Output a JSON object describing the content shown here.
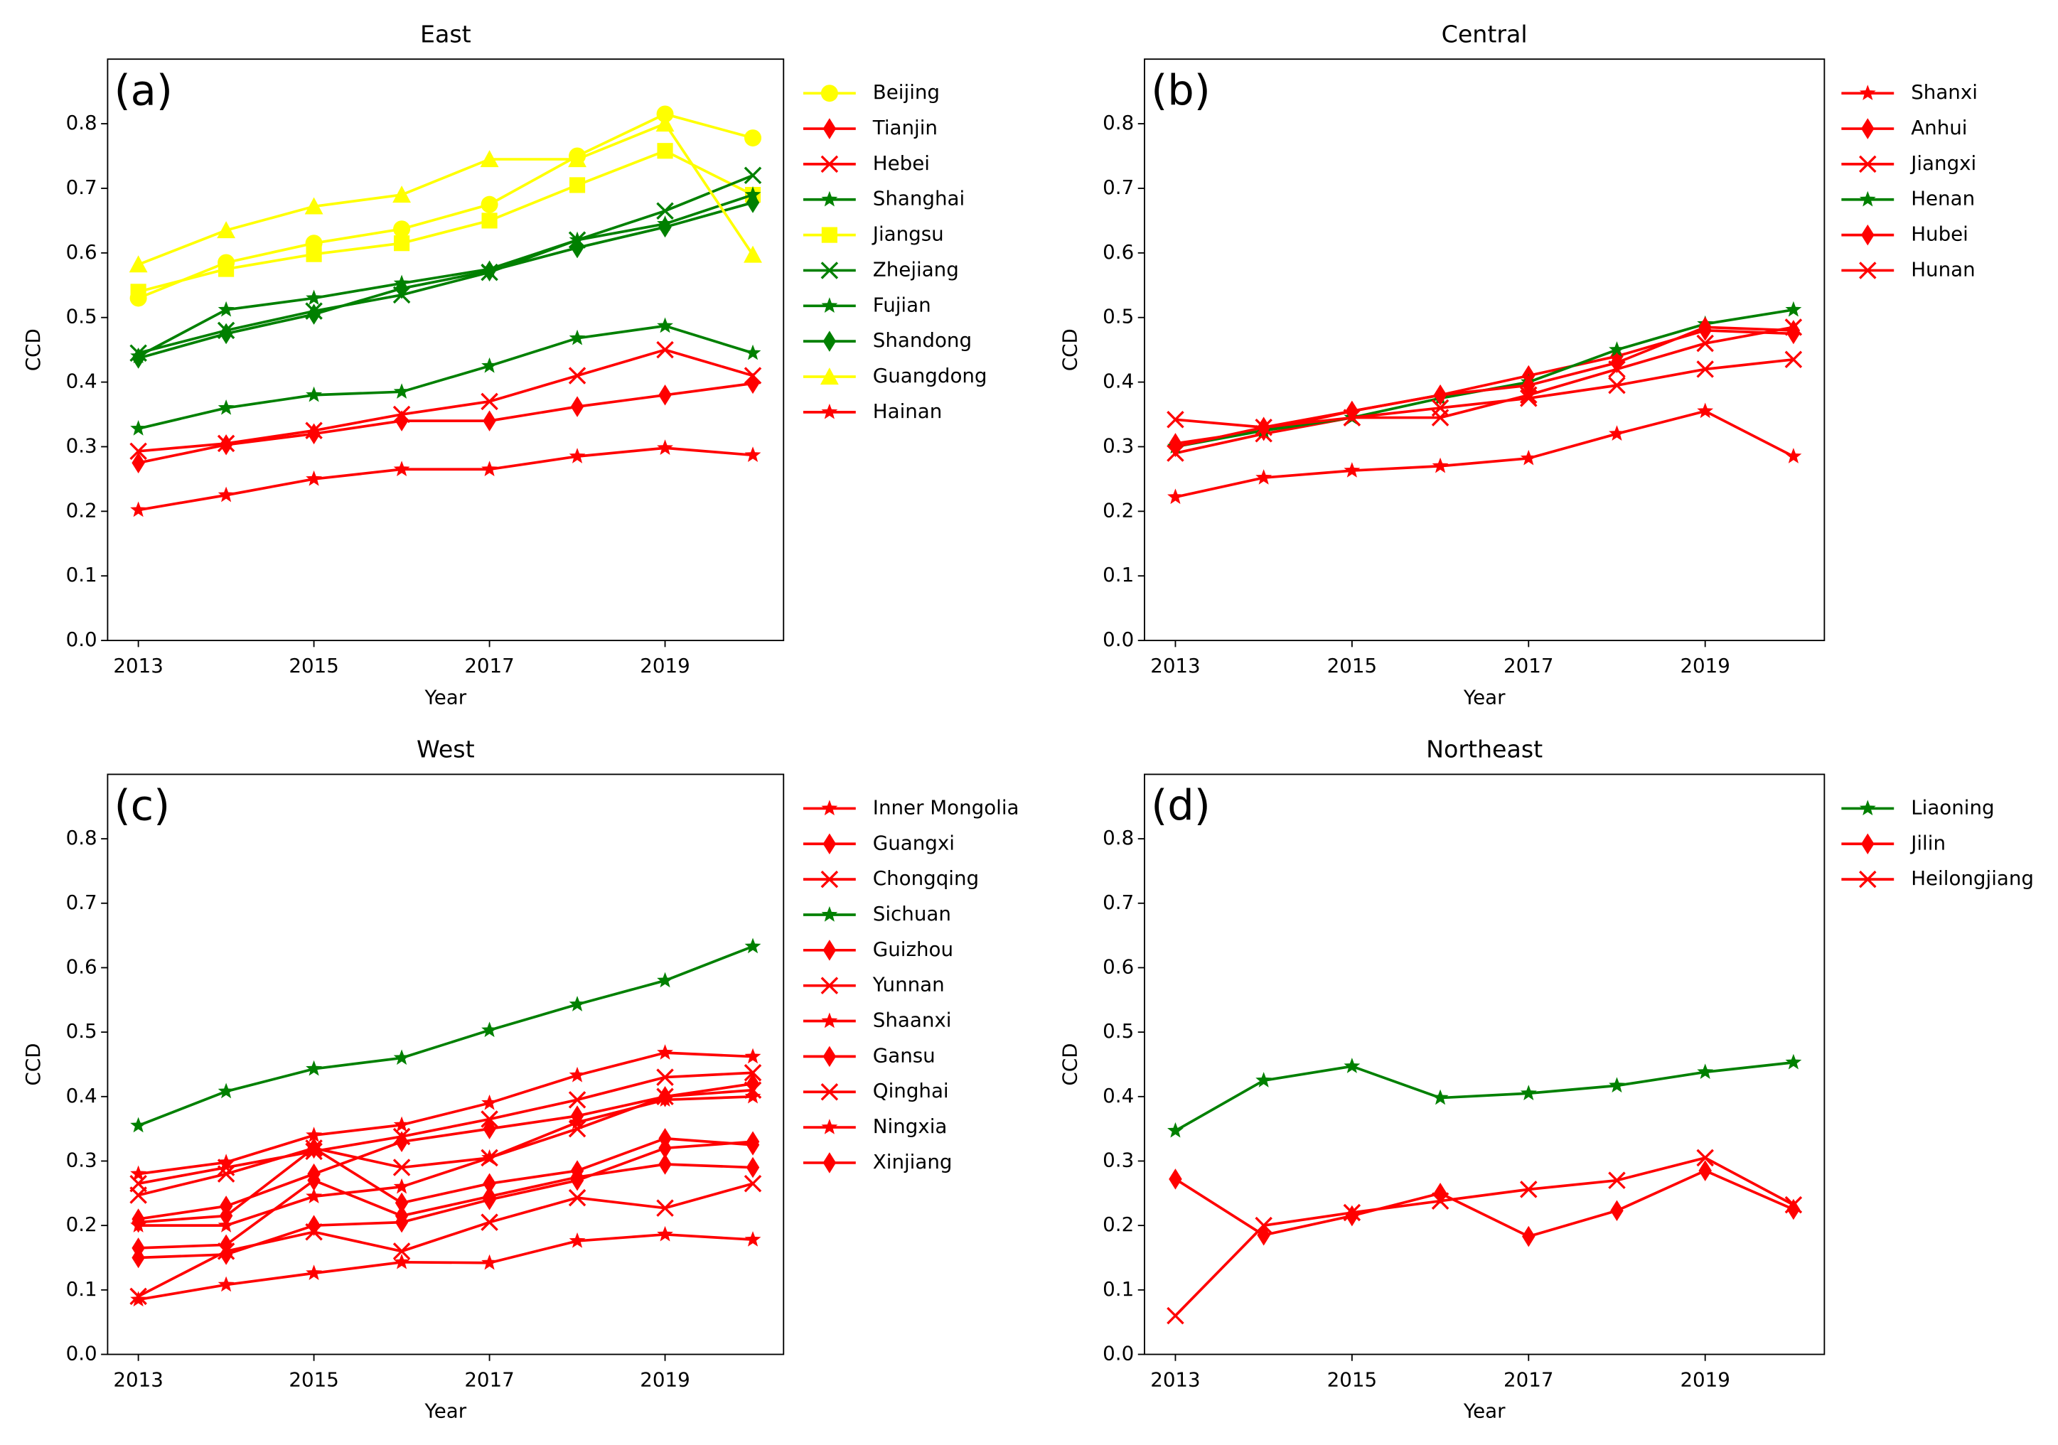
{
  "chart_data": [
    {
      "type": "line",
      "title": "East",
      "panel_label": "(a)",
      "xlabel": "Year",
      "ylabel": "CCD",
      "x": [
        2013,
        2014,
        2015,
        2016,
        2017,
        2018,
        2019,
        2020
      ],
      "xlim": [
        2012.65,
        2020.35
      ],
      "xticks": [
        2013,
        2015,
        2017,
        2019
      ],
      "ylim": [
        0,
        0.9
      ],
      "yticks": [
        {
          "value": 0,
          "label": "0.0"
        },
        0.1,
        0.2,
        0.3,
        0.4,
        0.5,
        0.6,
        0.7,
        0.8
      ],
      "series": [
        {
          "name": "Beijing",
          "color": "#ffff00",
          "marker": "circle",
          "values": [
            0.53,
            0.585,
            0.615,
            0.637,
            0.675,
            0.75,
            0.815,
            0.778
          ]
        },
        {
          "name": "Tianjin",
          "color": "#ff0000",
          "marker": "diamond",
          "values": [
            0.275,
            0.303,
            0.32,
            0.34,
            0.34,
            0.362,
            0.38,
            0.398
          ]
        },
        {
          "name": "Hebei",
          "color": "#ff0000",
          "marker": "x",
          "values": [
            0.293,
            0.305,
            0.325,
            0.35,
            0.37,
            0.41,
            0.45,
            0.41
          ]
        },
        {
          "name": "Shanghai",
          "color": "#008000",
          "marker": "star",
          "values": [
            0.328,
            0.36,
            0.38,
            0.385,
            0.425,
            0.468,
            0.487,
            0.445
          ]
        },
        {
          "name": "Jiangsu",
          "color": "#ffff00",
          "marker": "square",
          "values": [
            0.54,
            0.575,
            0.598,
            0.615,
            0.65,
            0.705,
            0.758,
            0.69
          ]
        },
        {
          "name": "Zhejiang",
          "color": "#008000",
          "marker": "x",
          "values": [
            0.445,
            0.48,
            0.51,
            0.535,
            0.57,
            0.62,
            0.665,
            0.72
          ]
        },
        {
          "name": "Fujian",
          "color": "#008000",
          "marker": "star",
          "values": [
            0.44,
            0.512,
            0.53,
            0.553,
            0.575,
            0.62,
            0.645,
            0.69
          ]
        },
        {
          "name": "Shandong",
          "color": "#008000",
          "marker": "diamond",
          "values": [
            0.437,
            0.475,
            0.505,
            0.545,
            0.572,
            0.608,
            0.64,
            0.678
          ]
        },
        {
          "name": "Guangdong",
          "color": "#ffff00",
          "marker": "triangle",
          "values": [
            0.582,
            0.635,
            0.672,
            0.69,
            0.745,
            0.745,
            0.8,
            0.597
          ]
        },
        {
          "name": "Hainan",
          "color": "#ff0000",
          "marker": "star",
          "values": [
            0.202,
            0.225,
            0.25,
            0.265,
            0.265,
            0.285,
            0.298,
            0.287
          ]
        }
      ]
    },
    {
      "type": "line",
      "title": "Central",
      "panel_label": "(b)",
      "xlabel": "Year",
      "ylabel": "CCD",
      "x": [
        2013,
        2014,
        2015,
        2016,
        2017,
        2018,
        2019,
        2020
      ],
      "xlim": [
        2012.65,
        2020.35
      ],
      "xticks": [
        2013,
        2015,
        2017,
        2019
      ],
      "ylim": [
        0,
        0.9
      ],
      "yticks": [
        {
          "value": 0,
          "label": "0.0"
        },
        0.1,
        0.2,
        0.3,
        0.4,
        0.5,
        0.6,
        0.7,
        0.8
      ],
      "series": [
        {
          "name": "Shanxi",
          "color": "#ff0000",
          "marker": "star",
          "values": [
            0.222,
            0.252,
            0.263,
            0.27,
            0.282,
            0.32,
            0.355,
            0.285
          ]
        },
        {
          "name": "Anhui",
          "color": "#ff0000",
          "marker": "diamond",
          "values": [
            0.305,
            0.325,
            0.355,
            0.38,
            0.41,
            0.44,
            0.48,
            0.475
          ]
        },
        {
          "name": "Jiangxi",
          "color": "#ff0000",
          "marker": "x",
          "values": [
            0.29,
            0.32,
            0.345,
            0.345,
            0.38,
            0.42,
            0.46,
            0.485
          ]
        },
        {
          "name": "Henan",
          "color": "#008000",
          "marker": "star",
          "values": [
            0.3,
            0.325,
            0.345,
            0.375,
            0.4,
            0.45,
            0.49,
            0.512
          ]
        },
        {
          "name": "Hubei",
          "color": "#ff0000",
          "marker": "diamond",
          "values": [
            0.3,
            0.33,
            0.355,
            0.38,
            0.395,
            0.43,
            0.485,
            0.48
          ]
        },
        {
          "name": "Hunan",
          "color": "#ff0000",
          "marker": "x",
          "values": [
            0.342,
            0.33,
            0.345,
            0.36,
            0.375,
            0.395,
            0.42,
            0.435
          ]
        }
      ]
    },
    {
      "type": "line",
      "title": "West",
      "panel_label": "(c)",
      "xlabel": "Year",
      "ylabel": "CCD",
      "x": [
        2013,
        2014,
        2015,
        2016,
        2017,
        2018,
        2019,
        2020
      ],
      "xlim": [
        2012.65,
        2020.35
      ],
      "xticks": [
        2013,
        2015,
        2017,
        2019
      ],
      "ylim": [
        0,
        0.9
      ],
      "yticks": [
        {
          "value": 0,
          "label": "0.0"
        },
        0.1,
        0.2,
        0.3,
        0.4,
        0.5,
        0.6,
        0.7,
        0.8
      ],
      "series": [
        {
          "name": "Inner Mongolia",
          "color": "#ff0000",
          "marker": "star",
          "values": [
            0.28,
            0.298,
            0.34,
            0.356,
            0.39,
            0.433,
            0.468,
            0.462
          ]
        },
        {
          "name": "Guangxi",
          "color": "#ff0000",
          "marker": "diamond",
          "values": [
            0.21,
            0.23,
            0.28,
            0.33,
            0.35,
            0.37,
            0.4,
            0.42
          ]
        },
        {
          "name": "Chongqing",
          "color": "#ff0000",
          "marker": "x",
          "values": [
            0.265,
            0.29,
            0.315,
            0.338,
            0.365,
            0.395,
            0.43,
            0.437
          ]
        },
        {
          "name": "Sichuan",
          "color": "#008000",
          "marker": "star",
          "values": [
            0.355,
            0.408,
            0.443,
            0.46,
            0.503,
            0.543,
            0.58,
            0.633
          ]
        },
        {
          "name": "Guizhou",
          "color": "#ff0000",
          "marker": "diamond",
          "values": [
            0.165,
            0.17,
            0.27,
            0.215,
            0.245,
            0.275,
            0.295,
            0.29
          ]
        },
        {
          "name": "Yunnan",
          "color": "#ff0000",
          "marker": "x",
          "values": [
            0.247,
            0.28,
            0.32,
            0.29,
            0.305,
            0.35,
            0.4,
            0.41
          ]
        },
        {
          "name": "Shaanxi",
          "color": "#ff0000",
          "marker": "star",
          "values": [
            0.2,
            0.2,
            0.245,
            0.26,
            0.305,
            0.36,
            0.395,
            0.4
          ]
        },
        {
          "name": "Gansu",
          "color": "#ff0000",
          "marker": "diamond",
          "values": [
            0.15,
            0.155,
            0.2,
            0.205,
            0.24,
            0.27,
            0.32,
            0.33
          ]
        },
        {
          "name": "Qinghai",
          "color": "#ff0000",
          "marker": "x",
          "values": [
            0.09,
            0.16,
            0.19,
            0.16,
            0.205,
            0.243,
            0.227,
            0.265
          ]
        },
        {
          "name": "Ningxia",
          "color": "#ff0000",
          "marker": "star",
          "values": [
            0.085,
            0.108,
            0.126,
            0.143,
            0.142,
            0.176,
            0.186,
            0.178
          ]
        },
        {
          "name": "Xinjiang",
          "color": "#ff0000",
          "marker": "diamond",
          "values": [
            0.205,
            0.215,
            0.32,
            0.235,
            0.265,
            0.285,
            0.335,
            0.325
          ]
        }
      ]
    },
    {
      "type": "line",
      "title": "Northeast",
      "panel_label": "(d)",
      "xlabel": "Year",
      "ylabel": "CCD",
      "x": [
        2013,
        2014,
        2015,
        2016,
        2017,
        2018,
        2019,
        2020
      ],
      "xlim": [
        2012.65,
        2020.35
      ],
      "xticks": [
        2013,
        2015,
        2017,
        2019
      ],
      "ylim": [
        0,
        0.9
      ],
      "yticks": [
        {
          "value": 0,
          "label": "0.0"
        },
        0.1,
        0.2,
        0.3,
        0.4,
        0.5,
        0.6,
        0.7,
        0.8
      ],
      "series": [
        {
          "name": "Liaoning",
          "color": "#008000",
          "marker": "star",
          "values": [
            0.347,
            0.425,
            0.447,
            0.398,
            0.405,
            0.417,
            0.438,
            0.453
          ]
        },
        {
          "name": "Jilin",
          "color": "#ff0000",
          "marker": "diamond",
          "values": [
            0.272,
            0.185,
            0.215,
            0.25,
            0.183,
            0.223,
            0.285,
            0.225
          ]
        },
        {
          "name": "Heilongjiang",
          "color": "#ff0000",
          "marker": "x",
          "values": [
            0.06,
            0.2,
            0.22,
            0.238,
            0.256,
            0.27,
            0.305,
            0.232
          ]
        }
      ]
    }
  ]
}
